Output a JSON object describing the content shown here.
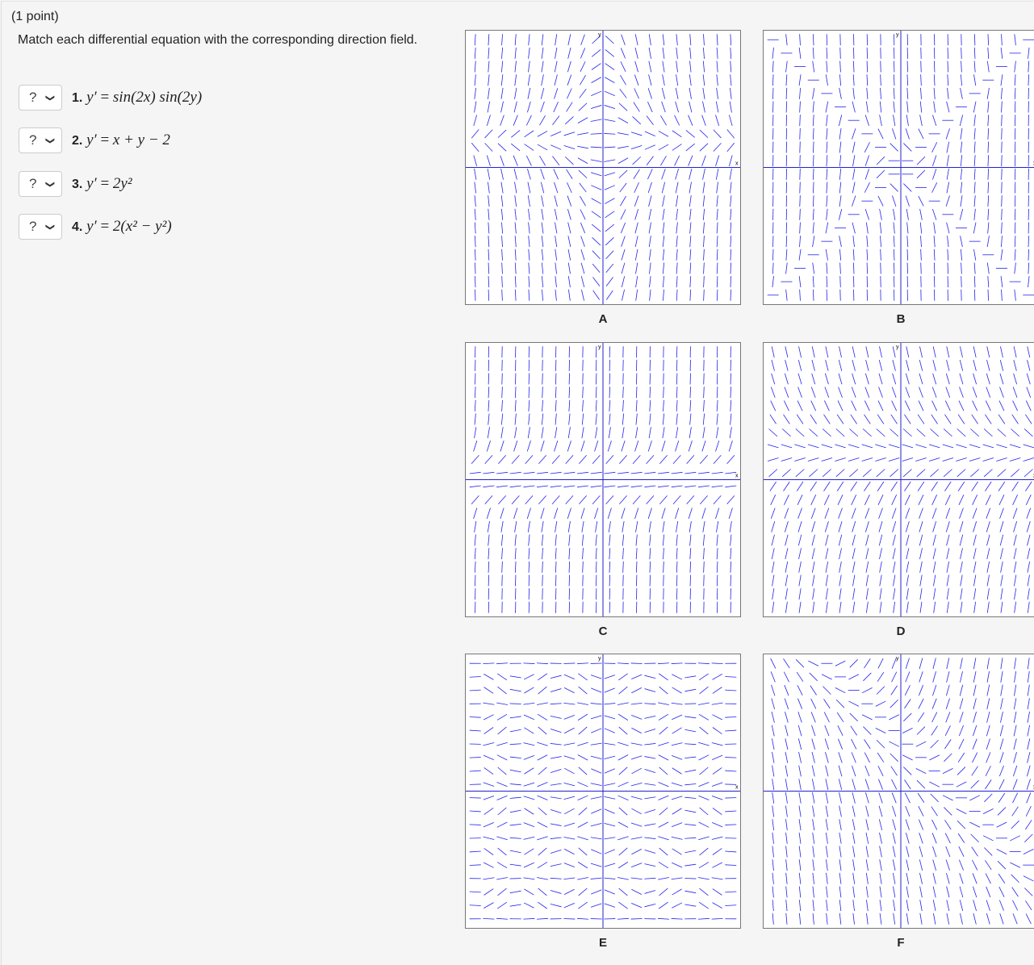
{
  "points": "(1 point)",
  "prompt": "Match each differential equation with the corresponding direction field.",
  "questions": [
    {
      "select": "?",
      "num": "1.",
      "lhs": "y′",
      "rhs": "sin(2x) sin(2y)"
    },
    {
      "select": "?",
      "num": "2.",
      "lhs": "y′",
      "rhs": "x + y − 2"
    },
    {
      "select": "?",
      "num": "3.",
      "lhs": "y′",
      "rhs": "2y²"
    },
    {
      "select": "?",
      "num": "4.",
      "lhs": "y′",
      "rhs": "2(x² − y²)"
    }
  ],
  "chevron_icon": "chevron-down-icon",
  "plots": [
    {
      "label": "A"
    },
    {
      "label": "B"
    },
    {
      "label": "C"
    },
    {
      "label": "D"
    },
    {
      "label": "E"
    },
    {
      "label": "F"
    }
  ],
  "axis_labels": {
    "x": "x",
    "y": "y"
  },
  "colors": {
    "field": "#2222ee",
    "axis": "#2222cc"
  }
}
